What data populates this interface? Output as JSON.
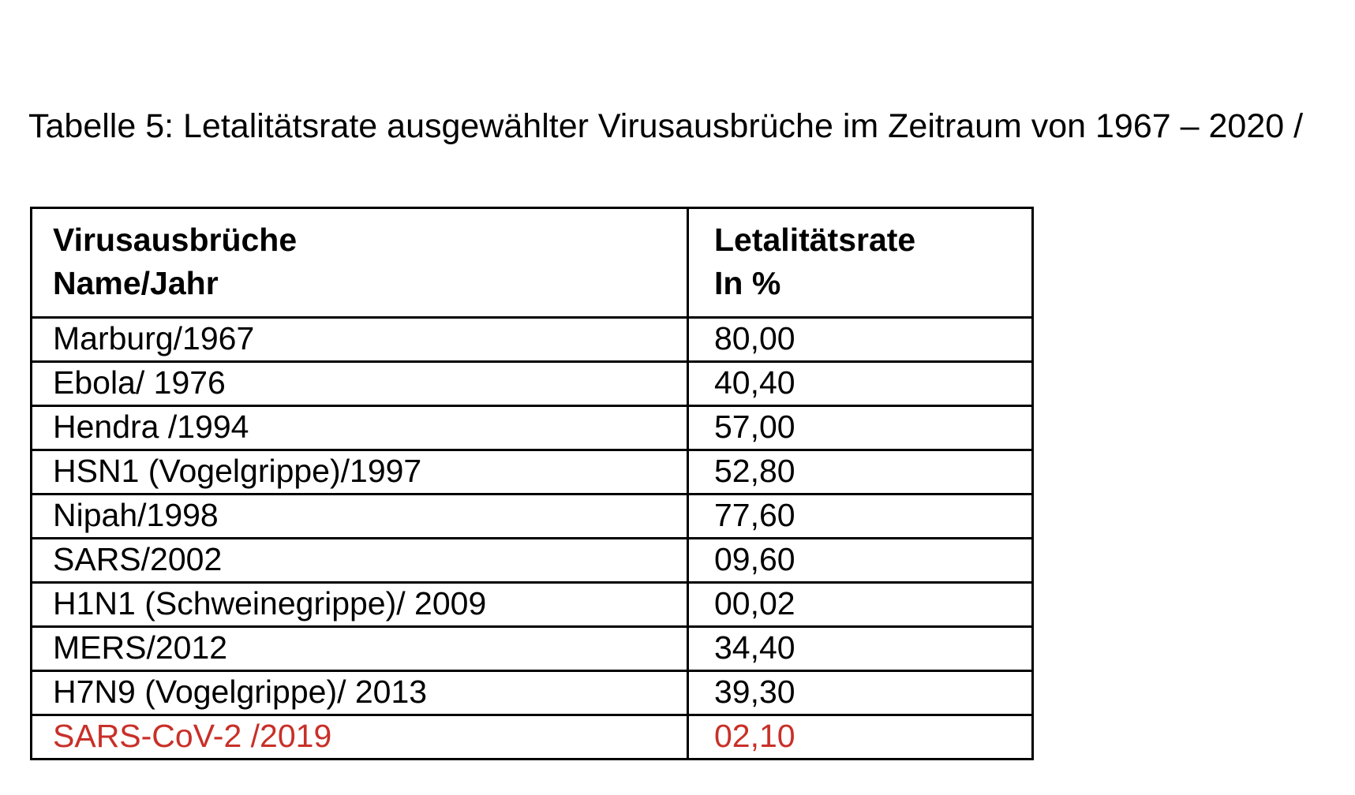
{
  "page": {
    "title": "Tabelle 5: Letalitätsrate ausgewählter Virusausbrüche im Zeitraum von 1967 – 2020 /"
  },
  "table": {
    "columns": [
      {
        "label_line1": "Virusausbrüche",
        "label_line2": "Name/Jahr"
      },
      {
        "label_line1": "Letalitätsrate",
        "label_line2": "In %"
      }
    ],
    "rows": [
      {
        "name": "Marburg/1967",
        "rate": "80,00",
        "highlight": false
      },
      {
        "name": "Ebola/ 1976",
        "rate": "40,40",
        "highlight": false
      },
      {
        "name": "Hendra /1994",
        "rate": "57,00",
        "highlight": false
      },
      {
        "name": "HSN1 (Vogelgrippe)/1997",
        "rate": "52,80",
        "highlight": false
      },
      {
        "name": "Nipah/1998",
        "rate": "77,60",
        "highlight": false
      },
      {
        "name": "SARS/2002",
        "rate": "09,60",
        "highlight": false
      },
      {
        "name": "H1N1 (Schweinegrippe)/ 2009",
        "rate": "00,02",
        "highlight": false
      },
      {
        "name": "MERS/2012",
        "rate": "34,40",
        "highlight": false
      },
      {
        "name": "H7N9 (Vogelgrippe)/ 2013",
        "rate": "39,30",
        "highlight": false
      },
      {
        "name": "SARS-CoV-2 /2019",
        "rate": "02,10",
        "highlight": true
      }
    ]
  },
  "colors": {
    "text_black": "#000000",
    "highlight_red": "#c83028",
    "border_black": "#000000",
    "page_background": "#ffffff"
  }
}
